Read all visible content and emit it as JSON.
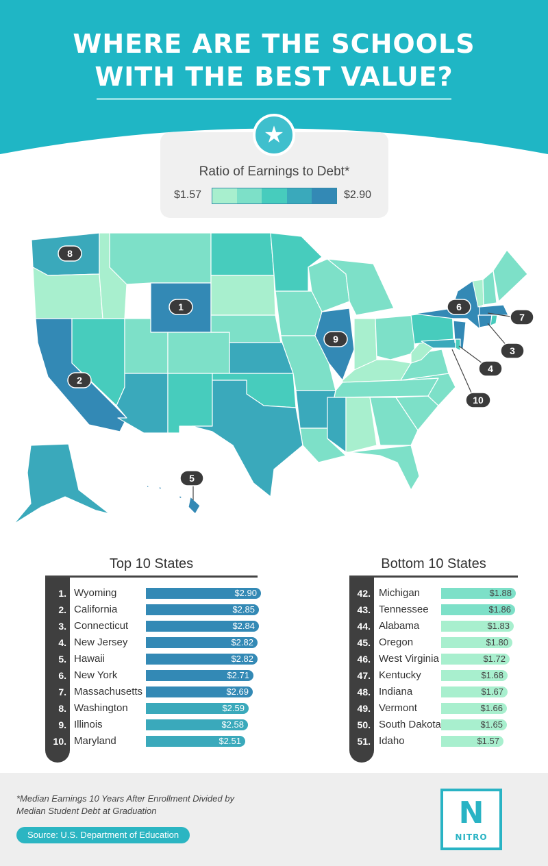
{
  "header": {
    "title_line1": "WHERE ARE THE SCHOOLS",
    "title_line2": "WITH THE BEST VALUE?"
  },
  "legend": {
    "title": "Ratio of Earnings to Debt*",
    "min_label": "$1.57",
    "max_label": "$2.90",
    "colors": [
      "#a8efce",
      "#7de0c8",
      "#47ccbd",
      "#3aa9bb",
      "#3389b5"
    ]
  },
  "map_labels": [
    "1",
    "2",
    "3",
    "4",
    "5",
    "6",
    "7",
    "8",
    "9",
    "10"
  ],
  "chart_data": [
    {
      "type": "bar",
      "title": "Top 10 States",
      "ranks": [
        "1.",
        "2.",
        "3.",
        "4.",
        "5.",
        "6.",
        "7.",
        "8.",
        "9.",
        "10."
      ],
      "categories": [
        "Wyoming",
        "California",
        "Connecticut",
        "New Jersey",
        "Hawaii",
        "New York",
        "Massachusetts",
        "Washington",
        "Illinois",
        "Maryland"
      ],
      "values": [
        2.9,
        2.85,
        2.84,
        2.82,
        2.82,
        2.71,
        2.69,
        2.59,
        2.58,
        2.51
      ],
      "value_labels": [
        "$2.90",
        "$2.85",
        "$2.84",
        "$2.82",
        "$2.82",
        "$2.71",
        "$2.69",
        "$2.59",
        "$2.58",
        "$2.51"
      ],
      "ylim": [
        0,
        2.9
      ]
    },
    {
      "type": "bar",
      "title": "Bottom 10 States",
      "ranks": [
        "42.",
        "43.",
        "44.",
        "45.",
        "46.",
        "47.",
        "48.",
        "49.",
        "50.",
        "51."
      ],
      "categories": [
        "Michigan",
        "Tennessee",
        "Alabama",
        "Oregon",
        "West Virginia",
        "Kentucky",
        "Indiana",
        "Vermont",
        "South Dakota",
        "Idaho"
      ],
      "values": [
        1.88,
        1.86,
        1.83,
        1.8,
        1.72,
        1.68,
        1.67,
        1.66,
        1.65,
        1.57
      ],
      "value_labels": [
        "$1.88",
        "$1.86",
        "$1.83",
        "$1.80",
        "$1.72",
        "$1.68",
        "$1.67",
        "$1.66",
        "$1.65",
        "$1.57"
      ],
      "ylim": [
        0,
        1.88
      ]
    }
  ],
  "footer": {
    "footnote": "*Median Earnings 10 Years After Enrollment Divided by Median Student Debt at Graduation",
    "source": "Source: U.S. Department of Education",
    "logo_letter": "N",
    "logo_word": "NITRO"
  }
}
